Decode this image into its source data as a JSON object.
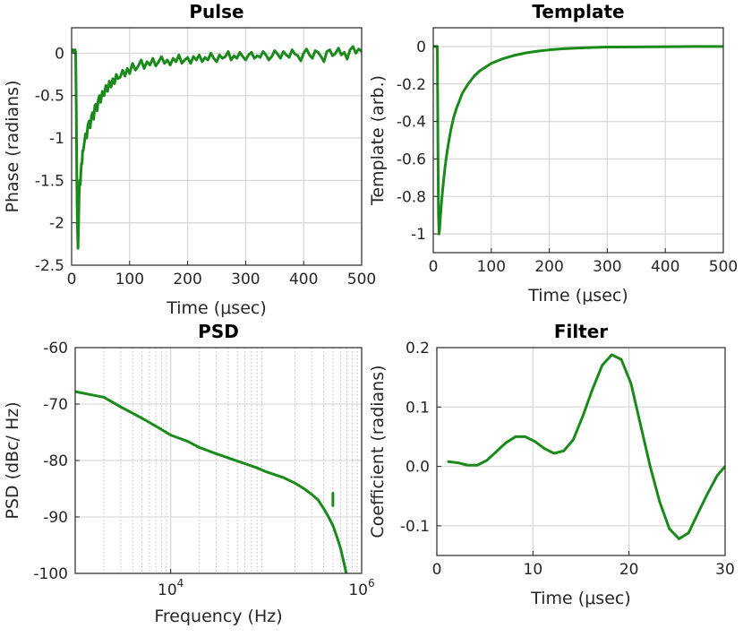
{
  "chart_data": [
    {
      "id": "pulse",
      "type": "line",
      "title": "Pulse",
      "xlabel": "Time (μsec)",
      "ylabel": "Phase (radians)",
      "xscale": "linear",
      "xlim": [
        0,
        500
      ],
      "ylim": [
        -2.5,
        0.3
      ],
      "xticks": [
        0,
        100,
        200,
        300,
        400,
        500
      ],
      "xtick_labels": [
        "0",
        "100",
        "200",
        "300",
        "400",
        "500"
      ],
      "yticks": [
        -2.5,
        -2,
        -1.5,
        -1,
        -0.5,
        0
      ],
      "ytick_labels": [
        "-2.5",
        "-2",
        "-1.5",
        "-1",
        "-0.5",
        "0"
      ],
      "grid": true,
      "series": [
        {
          "color": "#1a8a1a",
          "x": [
            0,
            2,
            4,
            6,
            7,
            8,
            9,
            10,
            11,
            12,
            13,
            14,
            15,
            16,
            17,
            18,
            19,
            20,
            22,
            24,
            26,
            28,
            30,
            32,
            34,
            36,
            38,
            40,
            42,
            44,
            46,
            48,
            50,
            53,
            56,
            59,
            62,
            65,
            68,
            71,
            74,
            77,
            80,
            84,
            88,
            92,
            96,
            100,
            105,
            110,
            115,
            120,
            125,
            130,
            135,
            140,
            145,
            150,
            155,
            160,
            165,
            170,
            175,
            180,
            185,
            190,
            195,
            200,
            205,
            210,
            215,
            220,
            225,
            230,
            235,
            240,
            245,
            250,
            255,
            260,
            265,
            270,
            275,
            280,
            285,
            290,
            295,
            300,
            305,
            310,
            315,
            320,
            325,
            330,
            335,
            340,
            345,
            350,
            355,
            360,
            365,
            370,
            375,
            380,
            385,
            390,
            395,
            400,
            405,
            410,
            415,
            420,
            425,
            430,
            435,
            440,
            445,
            450,
            455,
            460,
            465,
            470,
            475,
            480,
            485,
            490,
            495,
            500
          ],
          "y": [
            0.02,
            0.04,
            0.02,
            0.04,
            0.0,
            -0.6,
            -1.5,
            -2.05,
            -2.3,
            -2.0,
            -1.65,
            -1.5,
            -1.55,
            -1.4,
            -1.3,
            -1.3,
            -1.15,
            -1.15,
            -1.05,
            -0.95,
            -1.0,
            -0.85,
            -0.8,
            -0.88,
            -0.75,
            -0.7,
            -0.78,
            -0.62,
            -0.6,
            -0.68,
            -0.55,
            -0.5,
            -0.58,
            -0.45,
            -0.5,
            -0.38,
            -0.45,
            -0.33,
            -0.4,
            -0.3,
            -0.36,
            -0.25,
            -0.3,
            -0.28,
            -0.2,
            -0.27,
            -0.18,
            -0.24,
            -0.12,
            -0.2,
            -0.15,
            -0.08,
            -0.18,
            -0.1,
            -0.14,
            -0.06,
            -0.15,
            -0.1,
            -0.04,
            -0.12,
            -0.08,
            -0.14,
            -0.06,
            -0.1,
            -0.02,
            -0.12,
            -0.08,
            -0.05,
            -0.12,
            -0.04,
            -0.08,
            -0.02,
            -0.1,
            -0.05,
            -0.08,
            0.0,
            -0.06,
            -0.1,
            -0.02,
            -0.06,
            -0.04,
            0.02,
            -0.08,
            -0.03,
            -0.06,
            0.01,
            -0.04,
            -0.08,
            -0.02,
            0.01,
            -0.06,
            -0.03,
            -0.05,
            0.02,
            -0.02,
            -0.08,
            -0.04,
            0.03,
            -0.01,
            -0.06,
            0.02,
            -0.02,
            -0.05,
            0.04,
            -0.01,
            -0.03,
            -0.09,
            0.0,
            0.05,
            -0.02,
            -0.06,
            0.03,
            0.01,
            -0.04,
            -0.1,
            0.02,
            0.04,
            -0.03,
            0.0,
            0.06,
            -0.02,
            0.01,
            -0.07,
            0.04,
            0.08,
            0.0,
            0.05,
            0.02
          ]
        }
      ]
    },
    {
      "id": "template",
      "type": "line",
      "title": "Template",
      "xlabel": "Time (μsec)",
      "ylabel": "Template (arb.)",
      "xscale": "linear",
      "xlim": [
        0,
        500
      ],
      "ylim": [
        -1.1,
        0.1
      ],
      "xticks": [
        0,
        100,
        200,
        300,
        400,
        500
      ],
      "xtick_labels": [
        "0",
        "100",
        "200",
        "300",
        "400",
        "500"
      ],
      "yticks": [
        -1,
        -0.8,
        -0.6,
        -0.4,
        -0.2,
        0
      ],
      "ytick_labels": [
        "-1",
        "-0.8",
        "-0.6",
        "-0.4",
        "-0.2",
        "0"
      ],
      "grid": true,
      "series": [
        {
          "color": "#1a8a1a",
          "x": [
            0,
            5,
            7,
            8,
            9,
            10,
            11,
            12,
            14,
            16,
            18,
            20,
            23,
            26,
            30,
            35,
            40,
            45,
            50,
            60,
            70,
            80,
            90,
            100,
            120,
            140,
            160,
            180,
            200,
            225,
            250,
            275,
            300,
            350,
            400,
            450,
            500
          ],
          "y": [
            0,
            0,
            0,
            -0.5,
            -0.9,
            -1.0,
            -0.97,
            -0.92,
            -0.84,
            -0.77,
            -0.71,
            -0.65,
            -0.58,
            -0.52,
            -0.45,
            -0.38,
            -0.33,
            -0.29,
            -0.25,
            -0.2,
            -0.16,
            -0.13,
            -0.11,
            -0.09,
            -0.065,
            -0.047,
            -0.034,
            -0.025,
            -0.018,
            -0.012,
            -0.008,
            -0.005,
            -0.003,
            -0.002,
            -0.001,
            0,
            0
          ]
        }
      ]
    },
    {
      "id": "psd",
      "type": "line",
      "title": "PSD",
      "xlabel": "Frequency (Hz)",
      "ylabel": "PSD (dBc/ Hz)",
      "xscale": "log",
      "xlim": [
        1000,
        1000000
      ],
      "ylim": [
        -100,
        -60
      ],
      "xticks": [
        10000,
        1000000
      ],
      "xtick_labels": [
        {
          "base": "10",
          "exp": "4"
        },
        {
          "base": "10",
          "exp": "6"
        }
      ],
      "yticks": [
        -100,
        -90,
        -80,
        -70,
        -60
      ],
      "ytick_labels": [
        "-100",
        "-90",
        "-80",
        "-70",
        "-60"
      ],
      "grid": true,
      "minor_grid": true,
      "series": [
        {
          "color": "#1a8a1a",
          "x": [
            1000,
            2000,
            3000,
            5000,
            8000,
            10000,
            15000,
            20000,
            30000,
            50000,
            80000,
            100000,
            150000,
            200000,
            250000,
            300000,
            350000,
            400000,
            450000,
            500000,
            550000,
            600000,
            650000,
            700000
          ],
          "y": [
            -67.8,
            -68.8,
            -70.5,
            -72.5,
            -74.5,
            -75.5,
            -76.6,
            -77.7,
            -78.8,
            -80.1,
            -81.3,
            -82.0,
            -83.0,
            -84.0,
            -85.0,
            -86.0,
            -87.0,
            -88.5,
            -90.0,
            -91.5,
            -93.5,
            -95.5,
            -98.0,
            -100.5
          ]
        },
        {
          "color": "#1a8a1a",
          "x": [
            500000,
            500000
          ],
          "y": [
            -88.0,
            -85.8
          ]
        }
      ]
    },
    {
      "id": "filter",
      "type": "line",
      "title": "Filter",
      "xlabel": "Time (μsec)",
      "ylabel": "Coefficient (radians)",
      "xscale": "linear",
      "xlim": [
        0,
        30
      ],
      "ylim": [
        -0.15,
        0.2
      ],
      "xticks": [
        0,
        10,
        20,
        30
      ],
      "xtick_labels": [
        "0",
        "10",
        "20",
        "30"
      ],
      "yticks": [
        -0.1,
        0.0,
        0.1,
        0.2
      ],
      "ytick_labels": [
        "-0.1",
        "0.0",
        "0.1",
        "0.2"
      ],
      "grid": true,
      "series": [
        {
          "color": "#1a8a1a",
          "x": [
            1.2,
            2.2,
            3.2,
            4.2,
            5.2,
            6.2,
            7.2,
            8.2,
            9.2,
            10.2,
            11.2,
            12.2,
            13.2,
            14.2,
            15.2,
            16.2,
            17.2,
            18.2,
            19.2,
            20.2,
            21.2,
            22.2,
            23.2,
            24.2,
            25.2,
            26.2,
            27.2,
            28.2,
            29.2,
            30.0
          ],
          "y": [
            0.008,
            0.006,
            0.002,
            0.002,
            0.01,
            0.025,
            0.04,
            0.05,
            0.05,
            0.042,
            0.03,
            0.022,
            0.026,
            0.045,
            0.085,
            0.13,
            0.17,
            0.188,
            0.18,
            0.14,
            0.07,
            0.0,
            -0.06,
            -0.105,
            -0.122,
            -0.112,
            -0.078,
            -0.045,
            -0.015,
            0.0
          ]
        }
      ]
    }
  ]
}
